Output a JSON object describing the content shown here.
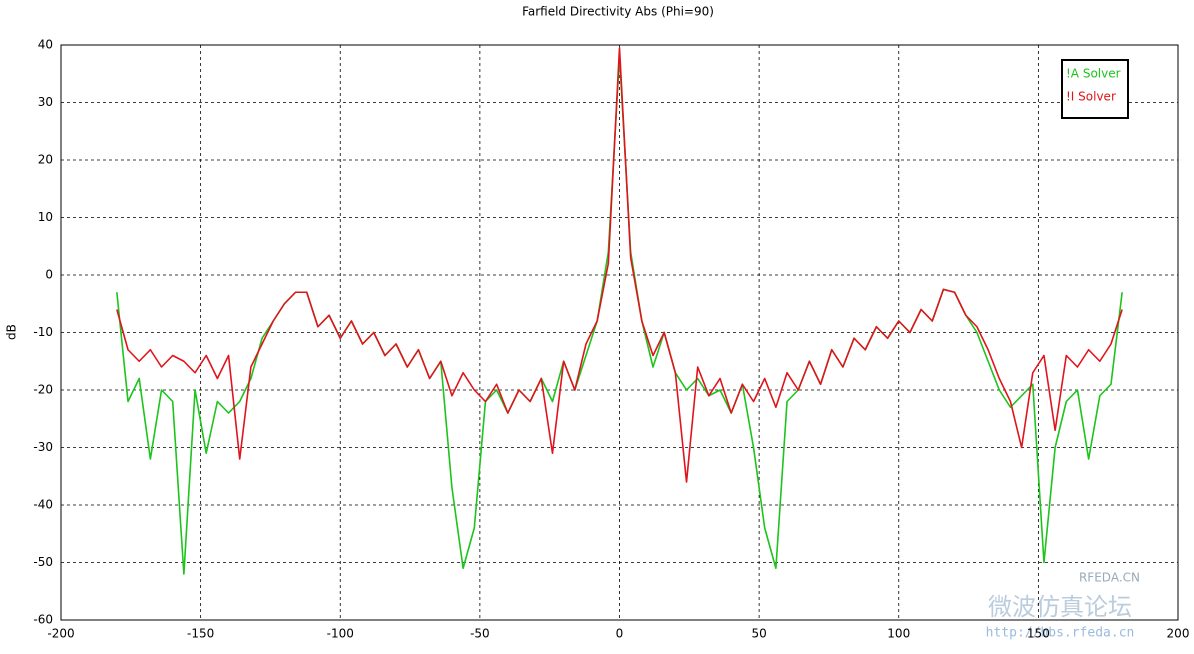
{
  "chart_data": {
    "type": "line",
    "title": "Farfield Directivity Abs (Phi=90)",
    "y_label": "dB",
    "x": [
      -180,
      -176,
      -172,
      -168,
      -164,
      -160,
      -156,
      -152,
      -148,
      -144,
      -140,
      -136,
      -132,
      -128,
      -124,
      -120,
      -116,
      -112,
      -108,
      -104,
      -100,
      -96,
      -92,
      -88,
      -84,
      -80,
      -76,
      -72,
      -68,
      -64,
      -60,
      -56,
      -52,
      -48,
      -44,
      -40,
      -36,
      -32,
      -28,
      -24,
      -20,
      -16,
      -12,
      -8,
      -4,
      0,
      4,
      8,
      12,
      16,
      20,
      24,
      28,
      32,
      36,
      40,
      44,
      48,
      52,
      56,
      60,
      64,
      68,
      72,
      76,
      80,
      84,
      88,
      92,
      96,
      100,
      104,
      108,
      112,
      116,
      120,
      124,
      128,
      132,
      136,
      140,
      144,
      148,
      152,
      156,
      160,
      164,
      168,
      172,
      176,
      180
    ],
    "series": [
      {
        "name": "!A Solver",
        "color": "#1cc41c",
        "values": [
          -3,
          -22,
          -18,
          -32,
          -20,
          -22,
          -52,
          -20,
          -31,
          -22,
          -24,
          -22,
          -18,
          -11,
          -8,
          -5,
          -3,
          -3,
          -9,
          -7,
          -11,
          -8,
          -12,
          -10,
          -14,
          -12,
          -16,
          -13,
          -18,
          -15,
          -37,
          -51,
          -44,
          -22,
          -20,
          -24,
          -20,
          -22,
          -18,
          -22,
          -15,
          -20,
          -14,
          -8,
          4,
          38,
          4,
          -8,
          -16,
          -10,
          -17,
          -20,
          -18,
          -21,
          -20,
          -24,
          -19,
          -30,
          -44,
          -51,
          -22,
          -20,
          -15,
          -19,
          -13,
          -16,
          -11,
          -13,
          -9,
          -11,
          -8,
          -10,
          -6,
          -8,
          -2.5,
          -3,
          -7,
          -10,
          -15,
          -20,
          -23,
          -21,
          -19,
          -50,
          -30,
          -22,
          -20,
          -32,
          -21,
          -19,
          -3
        ]
      },
      {
        "name": "!I Solver",
        "color": "#e0141c",
        "values": [
          -6,
          -13,
          -15,
          -13,
          -16,
          -14,
          -15,
          -17,
          -14,
          -18,
          -14,
          -32,
          -16,
          -12,
          -8,
          -5,
          -3,
          -3,
          -9,
          -7,
          -11,
          -8,
          -12,
          -10,
          -14,
          -12,
          -16,
          -13,
          -18,
          -15,
          -21,
          -17,
          -20,
          -22,
          -19,
          -24,
          -20,
          -22,
          -18,
          -31,
          -15,
          -20,
          -12,
          -8,
          2,
          39.5,
          3,
          -8,
          -14,
          -10,
          -17,
          -36,
          -16,
          -21,
          -18,
          -24,
          -19,
          -22,
          -18,
          -23,
          -17,
          -20,
          -15,
          -19,
          -13,
          -16,
          -11,
          -13,
          -9,
          -11,
          -8,
          -10,
          -6,
          -8,
          -2.5,
          -3,
          -7,
          -9,
          -13,
          -18,
          -22,
          -30,
          -17,
          -14,
          -27,
          -14,
          -16,
          -13,
          -15,
          -12,
          -6
        ]
      }
    ],
    "xlim": [
      -200,
      200
    ],
    "xticks": [
      -200,
      -150,
      -100,
      -50,
      0,
      50,
      100,
      150,
      200
    ],
    "ylim": [
      -60,
      40
    ],
    "yticks": [
      -60,
      -50,
      -40,
      -30,
      -20,
      -10,
      0,
      10,
      20,
      30,
      40
    ],
    "grid": true,
    "legend": "upper-right",
    "watermark": {
      "site": "RFEDA.CN",
      "name": "微波仿真论坛",
      "url": "http://bbs.rfeda.cn"
    }
  }
}
